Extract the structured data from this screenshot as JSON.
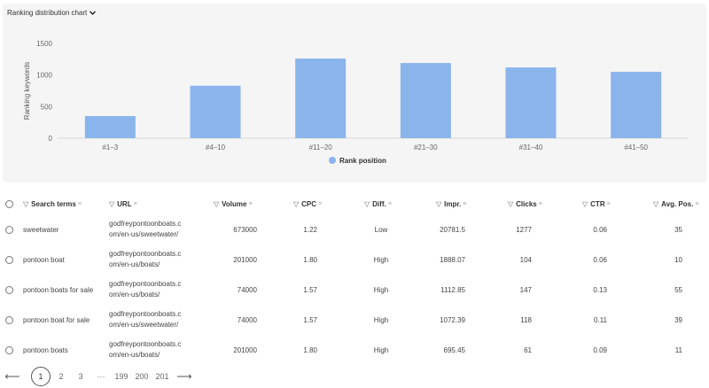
{
  "chart_header": {
    "label": "Ranking distribution chart"
  },
  "chart_data": {
    "type": "bar",
    "categories": [
      "#1–3",
      "#4–10",
      "#11–20",
      "#21–30",
      "#31–40",
      "#41–50"
    ],
    "values": [
      350,
      830,
      1260,
      1190,
      1120,
      1050
    ],
    "ylabel": "Ranking keywords",
    "xlabel": "",
    "ylim": [
      0,
      1500
    ],
    "yticks": [
      0,
      500,
      1000,
      1500
    ],
    "series": [
      {
        "name": "Rank position",
        "values": [
          350,
          830,
          1260,
          1190,
          1120,
          1050
        ]
      }
    ],
    "legend": "bottom-center",
    "grid": false,
    "bar_color": "#8ab4ec"
  },
  "table": {
    "headers": {
      "search_terms": "Search terms",
      "url": "URL",
      "volume": "Volume",
      "cpc": "CPC",
      "diff": "Diff.",
      "impr": "Impr.",
      "clicks": "Clicks",
      "ctr": "CTR",
      "avg_pos": "Avg. Pos."
    },
    "rows": [
      {
        "term": "sweetwater",
        "url1": "godfreypontoonboats.c",
        "url2": "om/en-us/sweetwater/",
        "volume": "673000",
        "cpc": "1.22",
        "diff": "Low",
        "impr": "20781.5",
        "clicks": "1277",
        "ctr": "0.06",
        "pos": "35"
      },
      {
        "term": "pontoon boat",
        "url1": "godfreypontoonboats.c",
        "url2": "om/en-us/boats/",
        "volume": "201000",
        "cpc": "1.80",
        "diff": "High",
        "impr": "1888.07",
        "clicks": "104",
        "ctr": "0.06",
        "pos": "10"
      },
      {
        "term": "pontoon boats for sale",
        "url1": "godfreypontoonboats.c",
        "url2": "om/en-us/boats/",
        "volume": "74000",
        "cpc": "1.57",
        "diff": "High",
        "impr": "1112.85",
        "clicks": "147",
        "ctr": "0.13",
        "pos": "55"
      },
      {
        "term": "pontoon boat for sale",
        "url1": "godfreypontoonboats.c",
        "url2": "om/en-us/sweetwater/",
        "volume": "74000",
        "cpc": "1.57",
        "diff": "High",
        "impr": "1072.39",
        "clicks": "118",
        "ctr": "0.11",
        "pos": "39"
      },
      {
        "term": "pontoon boats",
        "url1": "godfreypontoonboats.c",
        "url2": "om/en-us/boats/",
        "volume": "201000",
        "cpc": "1.80",
        "diff": "High",
        "impr": "695.45",
        "clicks": "61",
        "ctr": "0.09",
        "pos": "11"
      }
    ]
  },
  "pagination": {
    "prev": "⟵",
    "next": "⟶",
    "pages": [
      "1",
      "2",
      "3",
      "···",
      "199",
      "200",
      "201"
    ],
    "current": "1"
  },
  "icons": {
    "filter": "filter-icon",
    "sort": "sort-icon",
    "chevron": "chevron-down-icon"
  }
}
